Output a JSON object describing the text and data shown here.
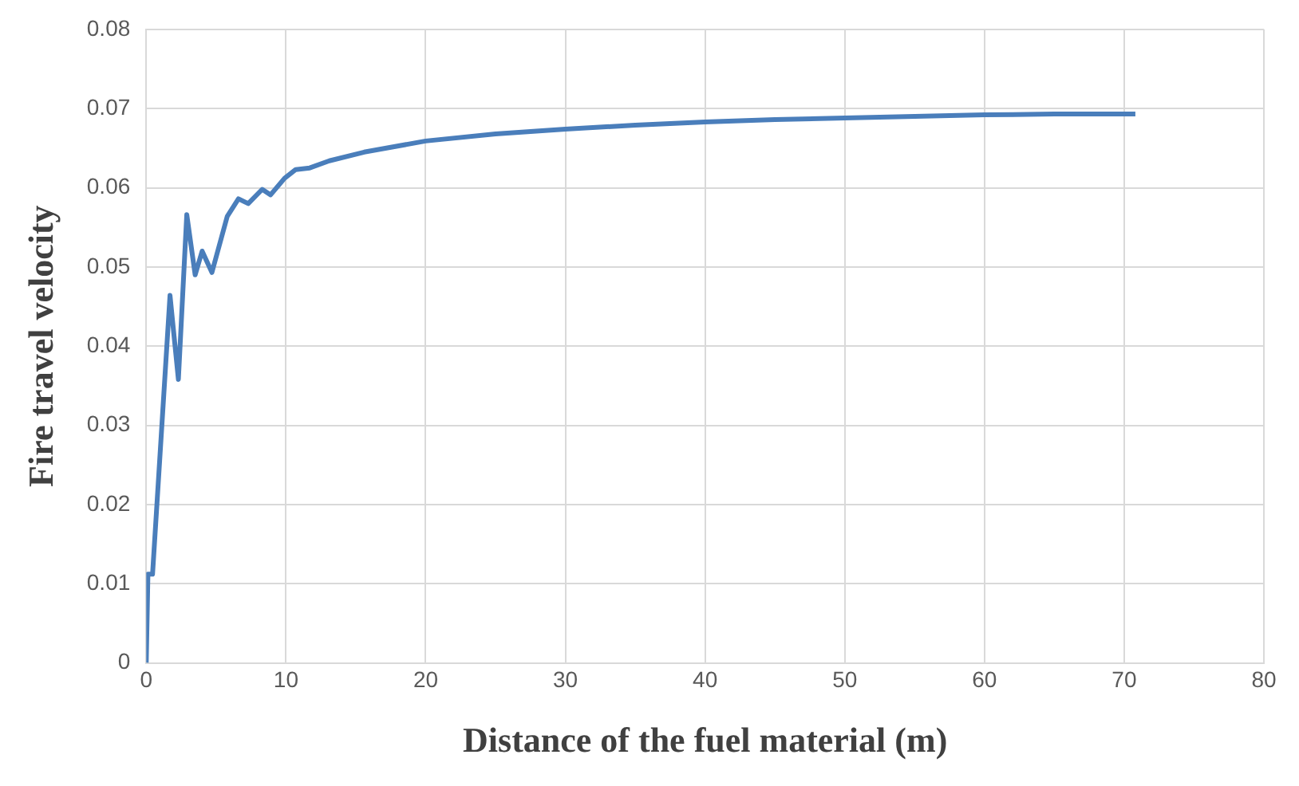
{
  "chart_data": {
    "type": "line",
    "xlabel": "Distance of the fuel material (m)",
    "ylabel": "Fire travel velocity",
    "x": [
      0,
      0.12,
      0.45,
      1.7,
      2.3,
      2.9,
      3.5,
      4.0,
      4.7,
      5.8,
      6.6,
      7.3,
      8.3,
      8.9,
      9.9,
      10.7,
      11.7,
      13.1,
      15.6,
      20,
      25,
      30,
      35,
      40,
      45,
      50,
      55,
      60,
      65,
      70.8
    ],
    "series": [
      {
        "color": "#4a7ebb",
        "values": [
          0,
          0.0112,
          0.0112,
          0.0464,
          0.0358,
          0.0566,
          0.049,
          0.052,
          0.0493,
          0.0564,
          0.0586,
          0.058,
          0.0598,
          0.0591,
          0.0612,
          0.0623,
          0.0625,
          0.0634,
          0.0645,
          0.0659,
          0.0668,
          0.0674,
          0.0679,
          0.0683,
          0.0686,
          0.0688,
          0.069,
          0.0692,
          0.0693,
          0.0693
        ]
      }
    ],
    "xlim": [
      0,
      80
    ],
    "xticks": [
      0,
      10,
      20,
      30,
      40,
      50,
      60,
      70,
      80
    ],
    "ylim": [
      0,
      0.08
    ],
    "yticks": [
      0,
      0.01,
      0.02,
      0.03,
      0.04,
      0.05,
      0.06,
      0.07,
      0.08
    ],
    "grid": true,
    "legend": false,
    "marker": "none",
    "line_style": "solid"
  }
}
